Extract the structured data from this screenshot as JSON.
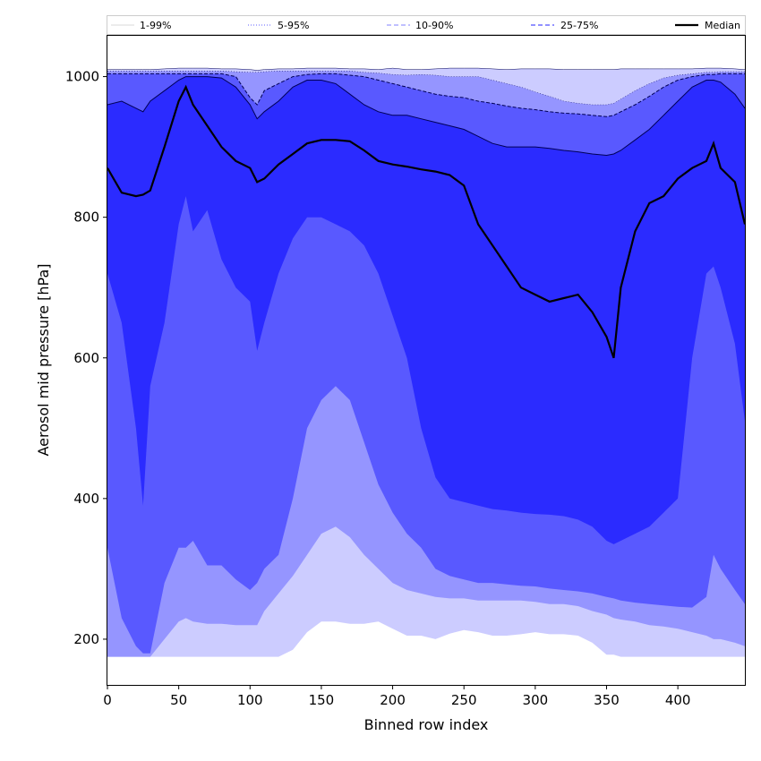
{
  "chart_data": {
    "type": "area",
    "xlabel": "Binned row index",
    "ylabel": "Aerosol mid pressure [hPa]",
    "xlim": [
      0,
      447
    ],
    "ylim": [
      135,
      1058
    ],
    "x_ticks": [
      "0",
      "50",
      "100",
      "150",
      "200",
      "250",
      "300",
      "350",
      "400"
    ],
    "y_ticks": [
      "200",
      "400",
      "600",
      "800",
      "1000"
    ],
    "legend_placement": "top",
    "legend": [
      {
        "label": "1-99%",
        "style": "thin-solid",
        "color": "#cccccc"
      },
      {
        "label": "5-95%",
        "style": "dotted",
        "color": "#7f7fff"
      },
      {
        "label": "10-90%",
        "style": "dashed",
        "color": "#9a9aff"
      },
      {
        "label": "25-75%",
        "style": "dashed",
        "color": "#5252ff"
      },
      {
        "label": "Median",
        "style": "solid",
        "color": "#000000"
      }
    ],
    "x": [
      0,
      10,
      20,
      25,
      30,
      40,
      50,
      55,
      60,
      70,
      80,
      90,
      100,
      105,
      110,
      120,
      130,
      140,
      150,
      160,
      170,
      180,
      190,
      200,
      210,
      220,
      230,
      240,
      250,
      260,
      270,
      280,
      290,
      300,
      310,
      320,
      330,
      340,
      350,
      355,
      360,
      370,
      380,
      390,
      400,
      410,
      420,
      425,
      430,
      440,
      447
    ],
    "bands": [
      {
        "name": "1-99%",
        "color": "#ccccff",
        "low": [
          175,
          175,
          175,
          175,
          175,
          175,
          175,
          175,
          175,
          175,
          175,
          175,
          175,
          175,
          175,
          175,
          185,
          210,
          225,
          225,
          222,
          222,
          225,
          215,
          205,
          205,
          200,
          208,
          213,
          210,
          205,
          205,
          207,
          210,
          207,
          207,
          205,
          195,
          178,
          178,
          175,
          175,
          175,
          175,
          175,
          175,
          175,
          175,
          175,
          175,
          175
        ],
        "high": [
          1010,
          1010,
          1010,
          1010,
          1010,
          1011,
          1012,
          1012,
          1012,
          1012,
          1011,
          1011,
          1010,
          1009,
          1010,
          1011,
          1011,
          1012,
          1012,
          1012,
          1011,
          1011,
          1010,
          1012,
          1010,
          1010,
          1011,
          1012,
          1012,
          1012,
          1011,
          1010,
          1011,
          1011,
          1011,
          1010,
          1010,
          1010,
          1010,
          1010,
          1011,
          1011,
          1011,
          1011,
          1011,
          1011,
          1012,
          1012,
          1012,
          1011,
          1010
        ]
      },
      {
        "name": "5-95%",
        "color": "#9595ff",
        "low": [
          175,
          175,
          175,
          175,
          175,
          200,
          225,
          230,
          225,
          222,
          222,
          220,
          220,
          220,
          240,
          265,
          290,
          320,
          350,
          360,
          345,
          320,
          300,
          280,
          270,
          265,
          260,
          258,
          258,
          255,
          255,
          255,
          255,
          253,
          250,
          250,
          247,
          240,
          235,
          230,
          228,
          225,
          220,
          218,
          215,
          210,
          205,
          200,
          200,
          195,
          190
        ],
        "high": [
          1008,
          1008,
          1008,
          1008,
          1008,
          1008,
          1008,
          1008,
          1008,
          1008,
          1008,
          1007,
          1006,
          1006,
          1007,
          1008,
          1008,
          1008,
          1008,
          1008,
          1008,
          1006,
          1005,
          1003,
          1002,
          1003,
          1002,
          1000,
          1000,
          1000,
          995,
          990,
          985,
          978,
          972,
          965,
          962,
          960,
          960,
          962,
          968,
          980,
          990,
          998,
          1002,
          1004,
          1006,
          1006,
          1007,
          1007,
          1007
        ]
      },
      {
        "name": "10-90%",
        "color": "#5959ff",
        "low": [
          330,
          230,
          190,
          180,
          180,
          280,
          330,
          330,
          340,
          305,
          305,
          285,
          270,
          280,
          300,
          320,
          400,
          500,
          540,
          560,
          540,
          480,
          420,
          380,
          350,
          330,
          300,
          290,
          285,
          280,
          280,
          278,
          276,
          275,
          272,
          270,
          268,
          265,
          260,
          258,
          255,
          252,
          250,
          248,
          246,
          245,
          260,
          320,
          300,
          270,
          250
        ],
        "high": [
          1004,
          1004,
          1004,
          1004,
          1004,
          1004,
          1004,
          1004,
          1004,
          1004,
          1004,
          1000,
          970,
          960,
          980,
          990,
          1000,
          1003,
          1004,
          1004,
          1002,
          1000,
          995,
          990,
          985,
          980,
          975,
          972,
          970,
          965,
          962,
          958,
          955,
          953,
          950,
          948,
          947,
          945,
          943,
          945,
          950,
          960,
          972,
          985,
          995,
          1000,
          1003,
          1003,
          1004,
          1004,
          1004
        ]
      },
      {
        "name": "25-75%",
        "color": "#2b2bff",
        "low": [
          720,
          650,
          500,
          390,
          560,
          650,
          790,
          830,
          780,
          810,
          740,
          700,
          680,
          610,
          650,
          720,
          770,
          800,
          800,
          790,
          780,
          760,
          720,
          660,
          600,
          500,
          430,
          400,
          395,
          390,
          385,
          383,
          380,
          378,
          377,
          375,
          370,
          360,
          340,
          335,
          340,
          350,
          360,
          380,
          400,
          600,
          720,
          730,
          700,
          620,
          510
        ],
        "high": [
          960,
          965,
          955,
          950,
          965,
          980,
          995,
          1000,
          1000,
          1000,
          998,
          985,
          960,
          940,
          950,
          965,
          985,
          995,
          995,
          990,
          975,
          960,
          950,
          945,
          945,
          940,
          935,
          930,
          925,
          915,
          905,
          900,
          900,
          900,
          898,
          895,
          893,
          890,
          888,
          890,
          895,
          910,
          925,
          945,
          965,
          985,
          995,
          995,
          992,
          975,
          955
        ]
      }
    ],
    "median": {
      "name": "Median",
      "color": "#000000",
      "values": [
        870,
        835,
        830,
        832,
        838,
        900,
        965,
        985,
        960,
        930,
        900,
        880,
        870,
        850,
        855,
        875,
        890,
        905,
        910,
        910,
        908,
        895,
        880,
        875,
        872,
        868,
        865,
        860,
        845,
        790,
        760,
        730,
        700,
        690,
        680,
        685,
        690,
        665,
        630,
        600,
        700,
        780,
        820,
        830,
        855,
        870,
        880,
        905,
        870,
        850,
        790
      ]
    }
  }
}
